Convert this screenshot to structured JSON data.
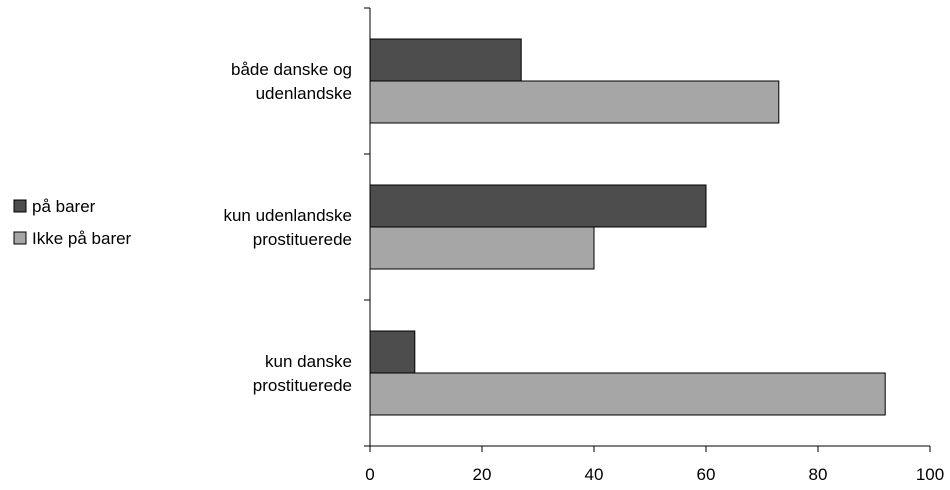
{
  "chart_data": {
    "type": "bar",
    "orientation": "horizontal",
    "categories": [
      [
        "både danske og",
        "udenlandske"
      ],
      [
        "kun udenlandske",
        "prostituerede"
      ],
      [
        "kun danske",
        "prostituerede"
      ]
    ],
    "series": [
      {
        "name": "på barer",
        "values": [
          27,
          60,
          8
        ],
        "color": "#4d4d4d"
      },
      {
        "name": "Ikke på barer",
        "values": [
          73,
          40,
          92
        ],
        "color": "#a6a6a6"
      }
    ],
    "xlim": [
      0,
      100
    ],
    "xticks": [
      "0",
      "20",
      "40",
      "60",
      "80",
      "100"
    ],
    "title": "",
    "xlabel": "",
    "ylabel": "",
    "legend_position": "left",
    "grid": false
  }
}
